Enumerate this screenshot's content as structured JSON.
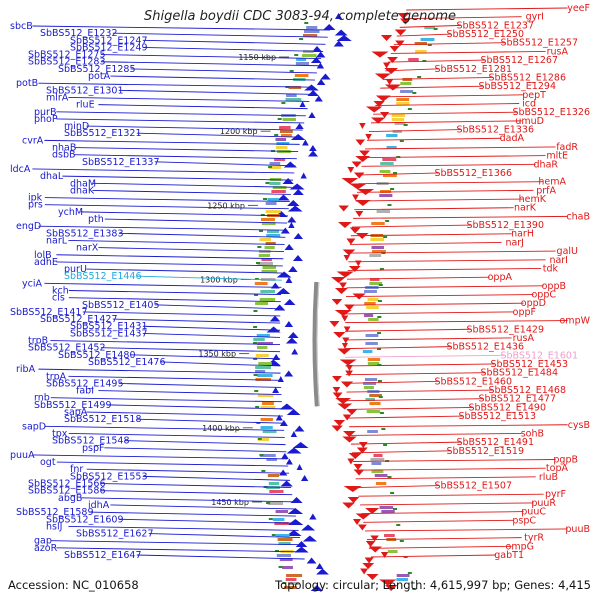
{
  "title": "Shigella boydii CDC 3083-94, complete genome",
  "footer": {
    "accession": "Accession: NC_010658",
    "topology": "Topology: circular; Length: 4,615,997 bp; Genes: 4,415"
  },
  "colors": {
    "minus_strand": "#1a1ad0",
    "plus_strand": "#e01818",
    "highlight_cyan": "#22aadd",
    "highlight_pink": "#f0a0cc",
    "backbone": "#8a8a8a"
  },
  "scale_marks": [
    "1150 kbp",
    "1200 kbp",
    "1250 kbp",
    "1300 kbp",
    "1350 kbp",
    "1400 kbp",
    "1450 kbp"
  ],
  "left_labels": [
    "sbcB",
    "SbBS512_E1232",
    "SbBS512_E1247",
    "SbBS512_E1249",
    "SbBS512_E1275",
    "SbBS512_E1283",
    "SbBS512_E1285",
    "potA",
    "potB",
    "SbBS512_E1301",
    "mlrA",
    "rluE",
    "purB",
    "phoP",
    "minD",
    "SbBS512_E1321",
    "cvrA",
    "nhaB",
    "dsbB",
    "SbBS512_E1337",
    "ldcA",
    "dhaL",
    "dhaM",
    "dhaK",
    "ipk",
    "prs",
    "ychM",
    "pth",
    "engD",
    "SbBS512_E1383",
    "narL",
    "narX",
    "lolB",
    "adhE",
    "purU",
    "SbBS512_E1446",
    "yciA",
    "kch",
    "cls",
    "SbBS512_E1405",
    "SbBS512_E1417",
    "SbBS512_E1427",
    "SbBS512_E1431",
    "SbBS512_E1437",
    "trpB",
    "SbBS512_E1452",
    "SbBS512_E1480",
    "SbBS512_E1476",
    "ribA",
    "trpA",
    "SbBS512_E1495",
    "fabI",
    "rnb",
    "SbBS512_E1499",
    "sapA",
    "SbBS512_E1518",
    "sapD",
    "tpx",
    "SbBS512_E1548",
    "pspF",
    "puuA",
    "ogt",
    "fnr",
    "SbBS512_E1553",
    "SbBS512_E1566",
    "SbBS512_E1586",
    "abgB",
    "idhA",
    "SbBS512_E1589",
    "SbBS512_E1609",
    "hslJ",
    "SbBS512_E1627",
    "gap",
    "azoR",
    "SbBS512_E1647"
  ],
  "right_labels": [
    "yeeF",
    "gyrI",
    "SbBS512_E1237",
    "SbBS512_E1250",
    "SbBS512_E1257",
    "rusA",
    "SbBS512_E1267",
    "SbBS512_E1281",
    "SbBS512_E1286",
    "SbBS512_E1294",
    "pepT",
    "icd",
    "SbBS512_E1326",
    "umuD",
    "SbBS512_E1336",
    "dadA",
    "fadR",
    "mltE",
    "dhaR",
    "SbBS512_E1366",
    "hemA",
    "prfA",
    "hemK",
    "narK",
    "chaB",
    "SbBS512_E1390",
    "narH",
    "narJ",
    "galU",
    "narI",
    "tdk",
    "oppA",
    "oppB",
    "oppC",
    "oppD",
    "oppF",
    "ompW",
    "SbBS512_E1429",
    "rusA",
    "SbBS512_E1436",
    "SbBS512_E1601",
    "SbBS512_E1453",
    "SbBS512_E1484",
    "SbBS512_E1460",
    "SbBS512_E1468",
    "SbBS512_E1477",
    "SbBS512_E1490",
    "SbBS512_E1513",
    "cysB",
    "sohB",
    "SbBS512_E1491",
    "SbBS512_E1519",
    "pgpB",
    "topA",
    "rluB",
    "SbBS512_E1507",
    "pyrF",
    "puuR",
    "puuC",
    "pspC",
    "puuB",
    "tyrR",
    "ompG",
    "gabT1"
  ]
}
